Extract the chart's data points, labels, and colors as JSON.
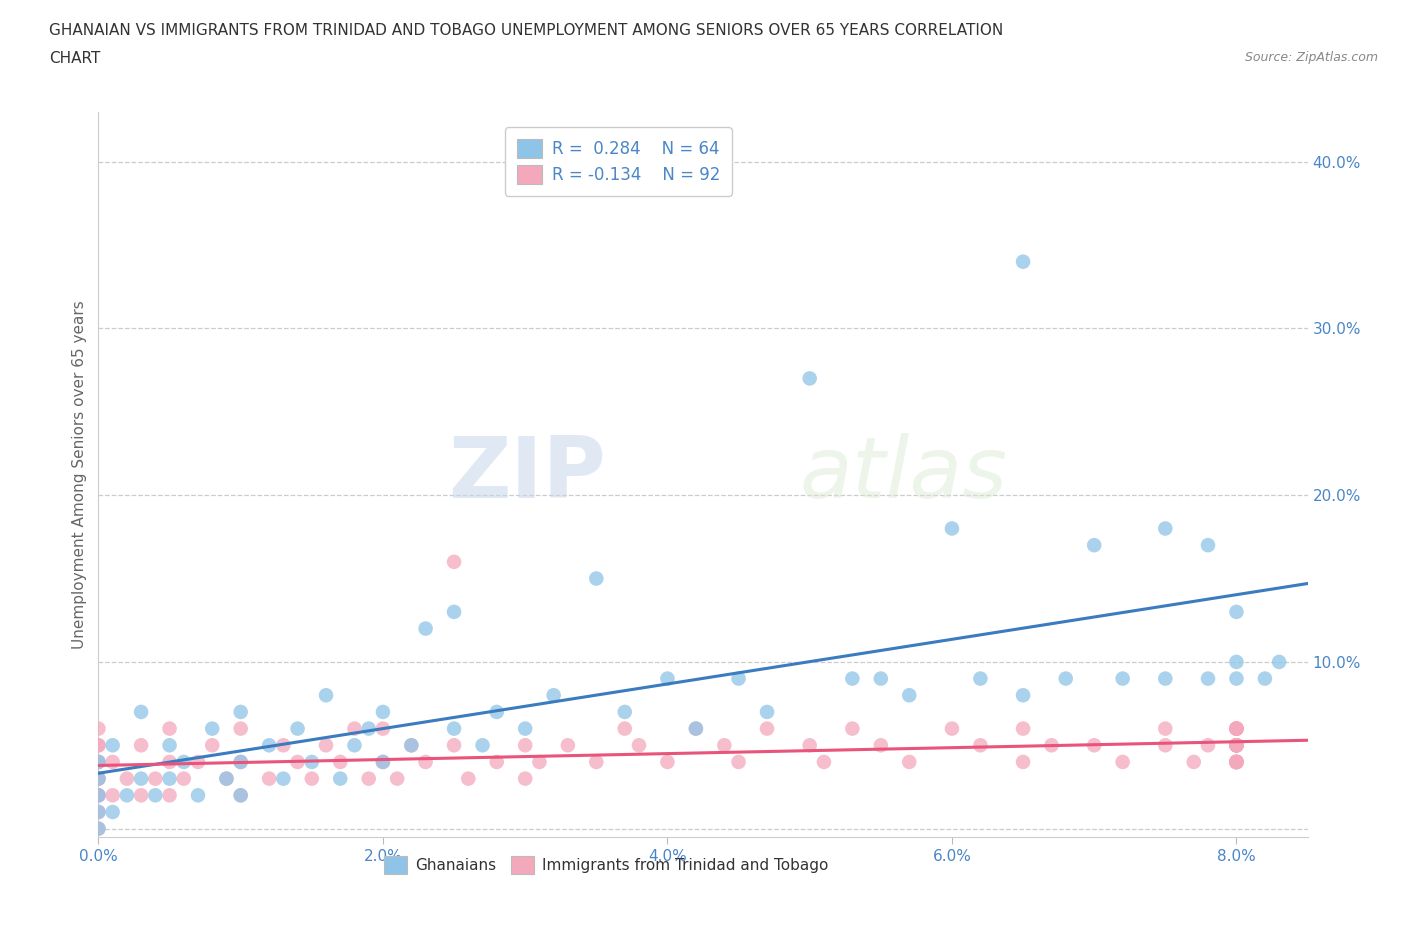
{
  "title_line1": "GHANAIAN VS IMMIGRANTS FROM TRINIDAD AND TOBAGO UNEMPLOYMENT AMONG SENIORS OVER 65 YEARS CORRELATION",
  "title_line2": "CHART",
  "source": "Source: ZipAtlas.com",
  "ylabel": "Unemployment Among Seniors over 65 years",
  "xlim": [
    0.0,
    0.085
  ],
  "ylim": [
    -0.005,
    0.43
  ],
  "xticks": [
    0.0,
    0.02,
    0.04,
    0.06,
    0.08
  ],
  "yticks": [
    0.0,
    0.1,
    0.2,
    0.3,
    0.4
  ],
  "blue_color": "#8ec4e8",
  "pink_color": "#f4a8bc",
  "blue_line_color": "#3a7cbf",
  "pink_line_color": "#e8547a",
  "R_blue": 0.284,
  "N_blue": 64,
  "R_pink": -0.134,
  "N_pink": 92,
  "legend_label_blue": "Ghanaians",
  "legend_label_pink": "Immigrants from Trinidad and Tobago",
  "watermark_zip": "ZIP",
  "watermark_atlas": "atlas",
  "background_color": "#ffffff",
  "title_color": "#444444",
  "label_color": "#4a86c8",
  "blue_x": [
    0.0,
    0.0,
    0.0,
    0.0,
    0.0,
    0.001,
    0.001,
    0.002,
    0.003,
    0.003,
    0.004,
    0.005,
    0.005,
    0.006,
    0.007,
    0.008,
    0.009,
    0.01,
    0.01,
    0.01,
    0.012,
    0.013,
    0.014,
    0.015,
    0.016,
    0.017,
    0.018,
    0.019,
    0.02,
    0.02,
    0.022,
    0.023,
    0.025,
    0.025,
    0.027,
    0.028,
    0.03,
    0.032,
    0.035,
    0.037,
    0.04,
    0.042,
    0.045,
    0.047,
    0.05,
    0.053,
    0.055,
    0.057,
    0.06,
    0.062,
    0.065,
    0.065,
    0.068,
    0.07,
    0.072,
    0.075,
    0.075,
    0.078,
    0.078,
    0.08,
    0.08,
    0.08,
    0.082,
    0.083
  ],
  "blue_y": [
    0.0,
    0.01,
    0.02,
    0.03,
    0.04,
    0.01,
    0.05,
    0.02,
    0.03,
    0.07,
    0.02,
    0.03,
    0.05,
    0.04,
    0.02,
    0.06,
    0.03,
    0.02,
    0.04,
    0.07,
    0.05,
    0.03,
    0.06,
    0.04,
    0.08,
    0.03,
    0.05,
    0.06,
    0.04,
    0.07,
    0.05,
    0.12,
    0.06,
    0.13,
    0.05,
    0.07,
    0.06,
    0.08,
    0.15,
    0.07,
    0.09,
    0.06,
    0.09,
    0.07,
    0.27,
    0.09,
    0.09,
    0.08,
    0.18,
    0.09,
    0.34,
    0.08,
    0.09,
    0.17,
    0.09,
    0.09,
    0.18,
    0.09,
    0.17,
    0.09,
    0.1,
    0.13,
    0.09,
    0.1
  ],
  "pink_x": [
    0.0,
    0.0,
    0.0,
    0.0,
    0.0,
    0.0,
    0.0,
    0.0,
    0.0,
    0.0,
    0.0,
    0.001,
    0.001,
    0.002,
    0.003,
    0.003,
    0.004,
    0.005,
    0.005,
    0.005,
    0.006,
    0.007,
    0.008,
    0.009,
    0.01,
    0.01,
    0.01,
    0.012,
    0.013,
    0.014,
    0.015,
    0.016,
    0.017,
    0.018,
    0.019,
    0.02,
    0.02,
    0.021,
    0.022,
    0.023,
    0.025,
    0.025,
    0.026,
    0.028,
    0.03,
    0.03,
    0.031,
    0.033,
    0.035,
    0.037,
    0.038,
    0.04,
    0.042,
    0.044,
    0.045,
    0.047,
    0.05,
    0.051,
    0.053,
    0.055,
    0.057,
    0.06,
    0.062,
    0.065,
    0.065,
    0.067,
    0.07,
    0.072,
    0.075,
    0.075,
    0.077,
    0.078,
    0.08,
    0.08,
    0.08,
    0.08,
    0.08,
    0.08,
    0.08,
    0.08,
    0.08,
    0.08,
    0.08,
    0.08,
    0.08,
    0.08,
    0.08,
    0.08,
    0.08,
    0.08,
    0.08,
    0.08
  ],
  "pink_y": [
    0.0,
    0.01,
    0.02,
    0.03,
    0.04,
    0.05,
    0.03,
    0.02,
    0.04,
    0.06,
    0.05,
    0.02,
    0.04,
    0.03,
    0.05,
    0.02,
    0.03,
    0.02,
    0.04,
    0.06,
    0.03,
    0.04,
    0.05,
    0.03,
    0.04,
    0.02,
    0.06,
    0.03,
    0.05,
    0.04,
    0.03,
    0.05,
    0.04,
    0.06,
    0.03,
    0.04,
    0.06,
    0.03,
    0.05,
    0.04,
    0.16,
    0.05,
    0.03,
    0.04,
    0.05,
    0.03,
    0.04,
    0.05,
    0.04,
    0.06,
    0.05,
    0.04,
    0.06,
    0.05,
    0.04,
    0.06,
    0.05,
    0.04,
    0.06,
    0.05,
    0.04,
    0.06,
    0.05,
    0.04,
    0.06,
    0.05,
    0.05,
    0.04,
    0.05,
    0.06,
    0.04,
    0.05,
    0.05,
    0.04,
    0.06,
    0.05,
    0.04,
    0.06,
    0.05,
    0.04,
    0.05,
    0.06,
    0.04,
    0.05,
    0.06,
    0.04,
    0.05,
    0.06,
    0.04,
    0.05,
    0.06,
    0.04
  ]
}
